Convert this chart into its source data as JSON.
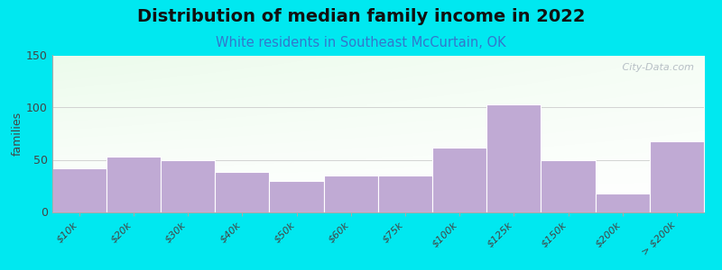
{
  "title": "Distribution of median family income in 2022",
  "subtitle": "White residents in Southeast McCurtain, OK",
  "ylabel": "families",
  "categories": [
    "$10k",
    "$20k",
    "$30k",
    "$40k",
    "$50k",
    "$60k",
    "$75k",
    "$100k",
    "$125k",
    "$150k",
    "$200k",
    "> $200k"
  ],
  "values": [
    42,
    53,
    50,
    38,
    30,
    35,
    35,
    62,
    103,
    50,
    18,
    68
  ],
  "bar_color": "#c0aad4",
  "background_outer": "#00e8f0",
  "ylim": [
    0,
    150
  ],
  "yticks": [
    0,
    50,
    100,
    150
  ],
  "title_fontsize": 14,
  "subtitle_fontsize": 10.5,
  "watermark": " City-Data.com"
}
